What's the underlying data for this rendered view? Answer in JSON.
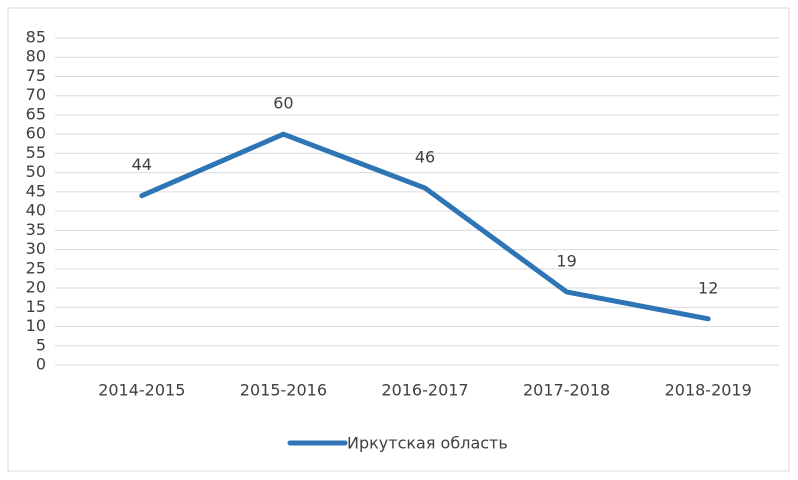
{
  "chart_data": {
    "type": "line",
    "categories": [
      "2014-2015",
      "2015-2016",
      "2016-2017",
      "2017-2018",
      "2018-2019"
    ],
    "series": [
      {
        "name": "Иркутская область",
        "color": "#2e75b6",
        "values": [
          44,
          60,
          46,
          19,
          12
        ]
      }
    ],
    "ylim": [
      0,
      85
    ],
    "yticks": [
      0,
      5,
      10,
      15,
      20,
      25,
      30,
      35,
      40,
      45,
      50,
      55,
      60,
      65,
      70,
      75,
      80,
      85
    ],
    "grid": true,
    "legend": "bottom",
    "data_labels": true
  }
}
